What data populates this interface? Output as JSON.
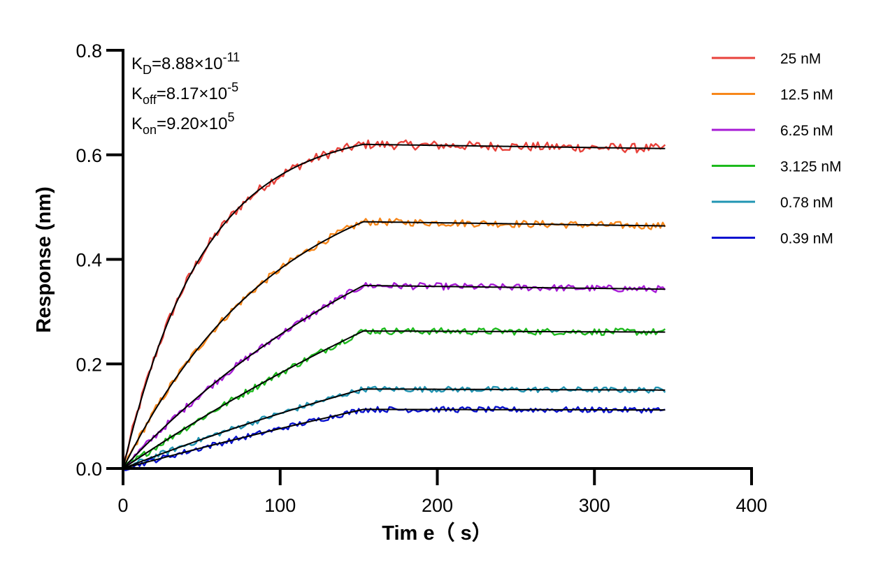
{
  "chart_data": {
    "type": "line",
    "xlabel": "Tim e（ s）",
    "ylabel": "Response (nm)",
    "xlim": [
      0,
      400
    ],
    "ylim": [
      0,
      0.8
    ],
    "xticks": [
      0,
      100,
      200,
      300,
      400
    ],
    "xtick_labels": [
      "0",
      "100",
      "200",
      "300",
      "400"
    ],
    "yticks": [
      0,
      0.2,
      0.4,
      0.6,
      0.8
    ],
    "ytick_labels": [
      "0.0",
      "0.2",
      "0.4",
      "0.6",
      "0.8"
    ],
    "grid": false,
    "legend_position": "top-right",
    "association_end_s": 153,
    "experiment_end_s": 345,
    "fit_color": "#000000",
    "annotations": [
      {
        "base": "K",
        "sub": "D",
        "eq": "=8.88×10",
        "sup": "-11"
      },
      {
        "base": "K",
        "sub": "off",
        "eq": "=8.17×10",
        "sup": "-5"
      },
      {
        "base": "K",
        "sub": "on",
        "eq": "=9.20×10",
        "sup": "5"
      }
    ],
    "series": [
      {
        "name": "25 nM",
        "color": "#E8423B",
        "plateau": 0.62,
        "end_value": 0.612,
        "shape": 3.0,
        "noise": 0.009
      },
      {
        "name": "12.5 nM",
        "color": "#F7871B",
        "plateau": 0.472,
        "end_value": 0.464,
        "shape": 1.55,
        "noise": 0.007
      },
      {
        "name": "6.25 nM",
        "color": "#A71BD6",
        "plateau": 0.35,
        "end_value": 0.343,
        "shape": 0.72,
        "noise": 0.0065
      },
      {
        "name": "3.125 nM",
        "color": "#1DBA1D",
        "plateau": 0.263,
        "end_value": 0.261,
        "shape": 0.35,
        "noise": 0.0065
      },
      {
        "name": "0.78 nM",
        "color": "#2195B3",
        "plateau": 0.152,
        "end_value": 0.15,
        "shape": 0.35,
        "noise": 0.0055
      },
      {
        "name": "0.39 nM",
        "color": "#0A12D0",
        "plateau": 0.113,
        "end_value": 0.112,
        "shape": 0.2,
        "noise": 0.0055
      }
    ]
  }
}
